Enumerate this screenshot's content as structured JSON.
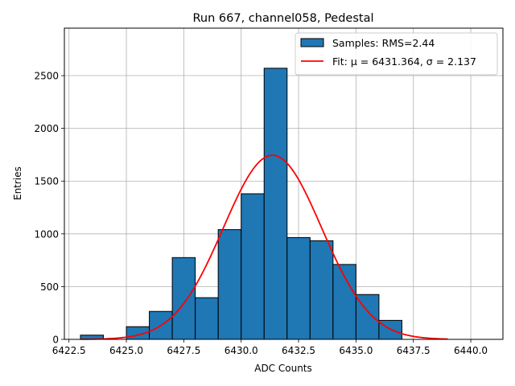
{
  "chart_data": {
    "type": "bar",
    "title": "Run 667, channel058, Pedestal",
    "xlabel": "ADC Counts",
    "ylabel": "Entries",
    "xlim": [
      6422.3,
      6441.4
    ],
    "ylim": [
      0,
      2950
    ],
    "xticks": [
      6422.5,
      6425.0,
      6427.5,
      6430.0,
      6432.5,
      6435.0,
      6437.5,
      6440.0
    ],
    "xtick_labels": [
      "6422.5",
      "6425.0",
      "6427.5",
      "6430.0",
      "6432.5",
      "6435.0",
      "6437.5",
      "6440.0"
    ],
    "yticks": [
      0,
      500,
      1000,
      1500,
      2000,
      2500
    ],
    "ytick_labels": [
      "0",
      "500",
      "1000",
      "1500",
      "2000",
      "2500"
    ],
    "grid": true,
    "legend_position": "top-right",
    "histogram": {
      "name": "Samples: RMS=2.44",
      "color": "#1f77b4",
      "edge_color": "#000000",
      "bin_edges": [
        6423.0,
        6424.0,
        6425.0,
        6426.0,
        6427.0,
        6428.0,
        6429.0,
        6430.0,
        6431.0,
        6432.0,
        6433.0,
        6434.0,
        6435.0,
        6436.0,
        6437.0,
        6438.0,
        6439.0,
        6440.0,
        6441.0
      ],
      "counts": [
        40,
        0,
        120,
        265,
        775,
        395,
        1040,
        1380,
        2570,
        965,
        935,
        710,
        425,
        180,
        0,
        0,
        0,
        0
      ]
    },
    "fit": {
      "name": "Fit: μ = 6431.364, σ = 2.137",
      "color": "#ff0000",
      "mu": 6431.364,
      "sigma": 2.137,
      "amplitude": 1745,
      "x_range": [
        6423.0,
        6439.0
      ]
    }
  }
}
